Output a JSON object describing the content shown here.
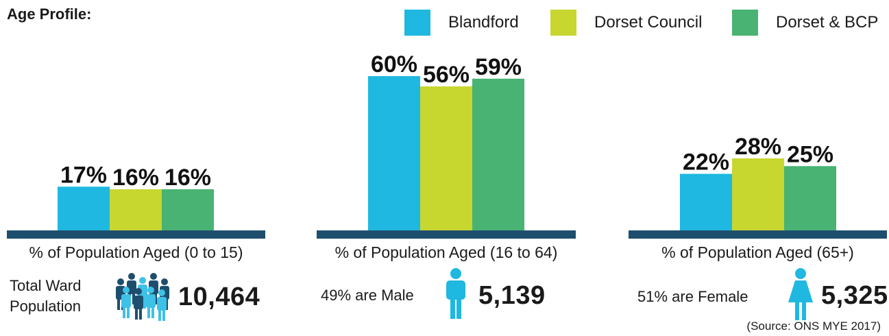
{
  "title": "Age Profile:",
  "colors": {
    "blandford": "#1fb8e0",
    "dorset_council": "#c8d630",
    "dorset_bcp": "#48b373",
    "baseline": "#1e4e6e",
    "person_dark": "#1e4e6e",
    "person_light": "#3ec1e6"
  },
  "legend": [
    {
      "label": "Blandford",
      "color": "#1fb8e0"
    },
    {
      "label": "Dorset Council",
      "color": "#c8d630"
    },
    {
      "label": "Dorset & BCP",
      "color": "#48b373"
    }
  ],
  "chart_data": {
    "type": "bar",
    "ylim": [
      0,
      100
    ],
    "categories": [
      "% of Population Aged (0 to 15)",
      "% of Population Aged (16 to 64)",
      "% of Population Aged (65+)"
    ],
    "series": [
      {
        "name": "Blandford",
        "values": [
          17,
          60,
          22
        ],
        "labels": [
          "17%",
          "60%",
          "22%"
        ]
      },
      {
        "name": "Dorset Council",
        "values": [
          16,
          56,
          28
        ],
        "labels": [
          "16%",
          "56%",
          "28%"
        ]
      },
      {
        "name": "Dorset & BCP",
        "values": [
          16,
          59,
          25
        ],
        "labels": [
          "16%",
          "59%",
          "25%"
        ]
      }
    ]
  },
  "stats": {
    "total_label_line1": "Total Ward",
    "total_label_line2": "Population",
    "total_value": "10,464",
    "male_pct": "49",
    "male_text": "% are Male",
    "male_value": "5,139",
    "female_pct": "51",
    "female_text": "% are Female",
    "female_value": "5,325"
  },
  "source": "(Source: ONS MYE 2017)"
}
